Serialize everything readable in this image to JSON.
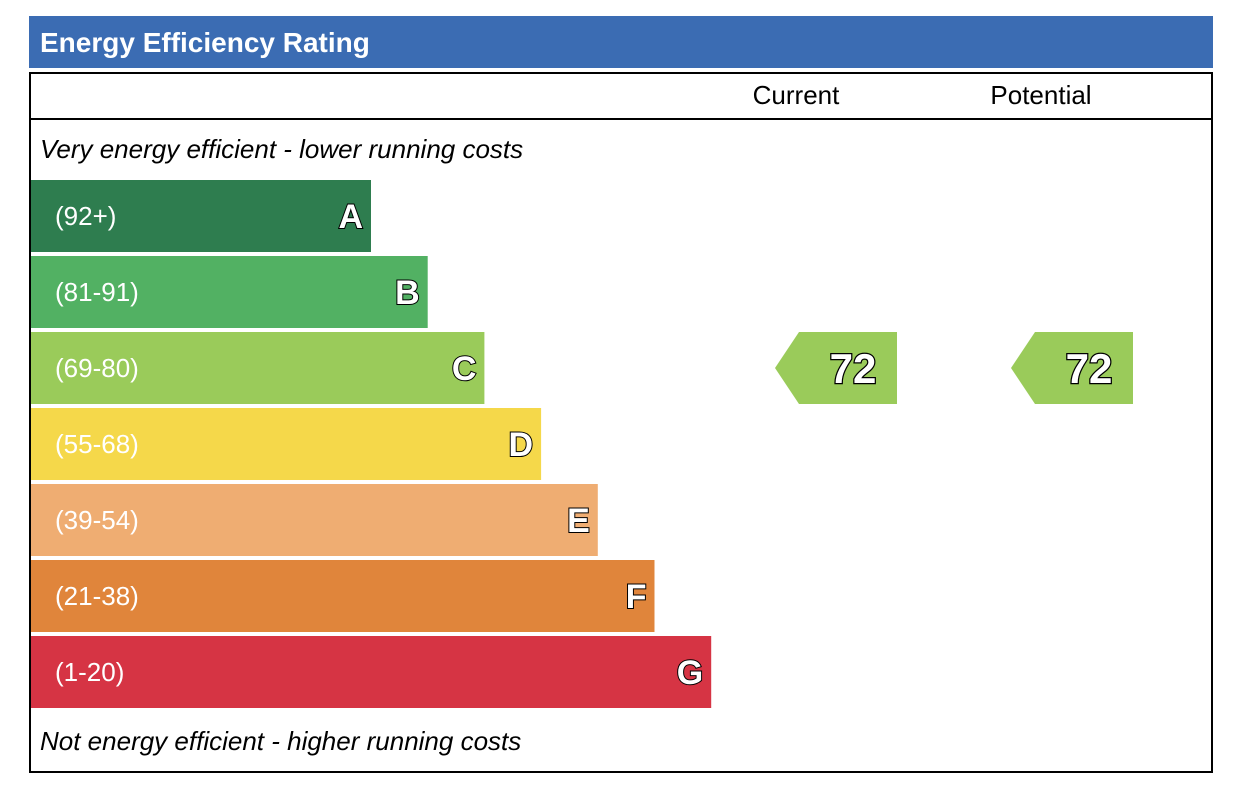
{
  "title": "Energy Efficiency Rating",
  "columns": {
    "current": "Current",
    "potential": "Potential"
  },
  "top_note": "Very energy efficient - lower running costs",
  "bottom_note": "Not energy efficient - higher running costs",
  "chart_data": {
    "type": "bar",
    "bands": [
      {
        "letter": "A",
        "range": "(92+)",
        "color": "#2e7d4f"
      },
      {
        "letter": "B",
        "range": "(81-91)",
        "color": "#52b163"
      },
      {
        "letter": "C",
        "range": "(69-80)",
        "color": "#9acb5a"
      },
      {
        "letter": "D",
        "range": "(55-68)",
        "color": "#f5d84a"
      },
      {
        "letter": "E",
        "range": "(39-54)",
        "color": "#efad72"
      },
      {
        "letter": "F",
        "range": "(21-38)",
        "color": "#e0853b"
      },
      {
        "letter": "G",
        "range": "(1-20)",
        "color": "#d63444"
      }
    ],
    "current": {
      "value": 72,
      "band": "C"
    },
    "potential": {
      "value": 72,
      "band": "C"
    }
  },
  "colors": {
    "header": "#3b6cb3",
    "border": "#000000"
  }
}
